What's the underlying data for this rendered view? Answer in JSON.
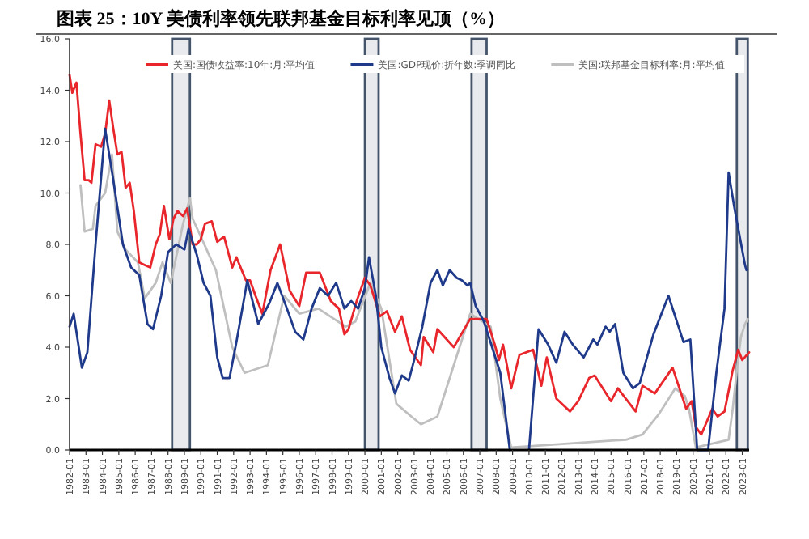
{
  "chart_data": {
    "type": "line",
    "title": "图表 25：10Y 美债利率领先联邦基金目标利率见顶（%）",
    "legend": "top",
    "xlim": [
      "1982-01",
      "2023-06"
    ],
    "xticks": [
      {
        "value": "1982-01",
        "label": "1982-01"
      },
      {
        "value": "1983-01",
        "label": "1983-01"
      },
      {
        "value": "1984-01",
        "label": "1984-01"
      },
      {
        "value": "1985-01",
        "label": "1985-01"
      },
      {
        "value": "1986-01",
        "label": "1986-01"
      },
      {
        "value": "1987-01",
        "label": "1987-01"
      },
      {
        "value": "1988-01",
        "label": "1988-01"
      },
      {
        "value": "1989-01",
        "label": "1989-01"
      },
      {
        "value": "1990-01",
        "label": "1990-01"
      },
      {
        "value": "1991-01",
        "label": "1991-01"
      },
      {
        "value": "1992-01",
        "label": "1992-01"
      },
      {
        "value": "1993-01",
        "label": "1993-01"
      },
      {
        "value": "1994-01",
        "label": "1994-01"
      },
      {
        "value": "1995-01",
        "label": "1995-01"
      },
      {
        "value": "1996-01",
        "label": "1996-01"
      },
      {
        "value": "1997-01",
        "label": "1997-01"
      },
      {
        "value": "1998-01",
        "label": "1998-01"
      },
      {
        "value": "1999-01",
        "label": "1999-01"
      },
      {
        "value": "2000-01",
        "label": "2000-01"
      },
      {
        "value": "2001-01",
        "label": "2001-01"
      },
      {
        "value": "2002-01",
        "label": "2002-01"
      },
      {
        "value": "2003-01",
        "label": "2003-01"
      },
      {
        "value": "2004-01",
        "label": "2004-01"
      },
      {
        "value": "2005-01",
        "label": "2005-01"
      },
      {
        "value": "2006-01",
        "label": "2006-01"
      },
      {
        "value": "2007-01",
        "label": "2007-01"
      },
      {
        "value": "2008-01",
        "label": "2008-01"
      },
      {
        "value": "2009-01",
        "label": "2009-01"
      },
      {
        "value": "2010-01",
        "label": "2010-01"
      },
      {
        "value": "2011-01",
        "label": "2011-01"
      },
      {
        "value": "2012-01",
        "label": "2012-01"
      },
      {
        "value": "2013-01",
        "label": "2013-01"
      },
      {
        "value": "2014-01",
        "label": "2014-01"
      },
      {
        "value": "2015-01",
        "label": "2015-01"
      },
      {
        "value": "2016-01",
        "label": "2016-01"
      },
      {
        "value": "2017-01",
        "label": "2017-01"
      },
      {
        "value": "2018-01",
        "label": "2018-01"
      },
      {
        "value": "2019-01",
        "label": "2019-01"
      },
      {
        "value": "2020-01",
        "label": "2020-01"
      },
      {
        "value": "2021-01",
        "label": "2021-01"
      },
      {
        "value": "2022-01",
        "label": "2022-01"
      },
      {
        "value": "2023-01",
        "label": "2023-01"
      }
    ],
    "ylim": [
      0,
      16
    ],
    "yticks": [
      {
        "value": 0,
        "label": "0.0"
      },
      {
        "value": 2,
        "label": "2.0"
      },
      {
        "value": 4,
        "label": "4.0"
      },
      {
        "value": 6,
        "label": "6.0"
      },
      {
        "value": 8,
        "label": "8.0"
      },
      {
        "value": 10,
        "label": "10.0"
      },
      {
        "value": 12,
        "label": "12.0"
      },
      {
        "value": 14,
        "label": "14.0"
      },
      {
        "value": 16,
        "label": "16.0"
      }
    ],
    "bands": [
      {
        "axis": "x",
        "from": "1988-04",
        "to": "1989-05",
        "color": "#44546a"
      },
      {
        "axis": "x",
        "from": "2000-01",
        "to": "2000-11",
        "color": "#44546a"
      },
      {
        "axis": "x",
        "from": "2006-07",
        "to": "2007-06",
        "color": "#44546a"
      },
      {
        "axis": "x",
        "from": "2022-09",
        "to": "2023-05",
        "color": "#44546a"
      }
    ],
    "series": [
      {
        "name": "美国:国债收益率:10年:月:平均值",
        "color": "#e8262b",
        "x": [
          "1982-01",
          "1982-03",
          "1982-06",
          "1982-09",
          "1982-12",
          "1983-03",
          "1983-05",
          "1983-08",
          "1983-12",
          "1984-03",
          "1984-06",
          "1984-09",
          "1984-12",
          "1985-03",
          "1985-06",
          "1985-09",
          "1985-12",
          "1986-04",
          "1986-08",
          "1986-12",
          "1987-04",
          "1987-07",
          "1987-10",
          "1988-02",
          "1988-05",
          "1988-08",
          "1988-12",
          "1989-03",
          "1989-07",
          "1989-10",
          "1990-01",
          "1990-04",
          "1990-09",
          "1991-01",
          "1991-06",
          "1991-12",
          "1992-03",
          "1992-10",
          "1993-01",
          "1993-05",
          "1993-10",
          "1994-04",
          "1994-11",
          "1995-06",
          "1996-01",
          "1996-06",
          "1997-04",
          "1997-12",
          "1998-06",
          "1998-10",
          "1999-01",
          "1999-07",
          "2000-01",
          "2000-05",
          "2000-12",
          "2001-05",
          "2001-11",
          "2002-04",
          "2002-10",
          "2003-06",
          "2003-08",
          "2004-03",
          "2004-06",
          "2005-06",
          "2006-06",
          "2007-06",
          "2007-12",
          "2008-03",
          "2008-06",
          "2008-12",
          "2009-06",
          "2010-04",
          "2010-10",
          "2011-02",
          "2011-09",
          "2012-07",
          "2013-01",
          "2013-09",
          "2014-01",
          "2015-01",
          "2015-06",
          "2016-07",
          "2016-12",
          "2017-09",
          "2018-10",
          "2019-08",
          "2019-12",
          "2020-03",
          "2020-07",
          "2021-03",
          "2021-07",
          "2021-12",
          "2022-06",
          "2022-10",
          "2023-01",
          "2023-06"
        ],
        "values": [
          14.6,
          13.9,
          14.3,
          12.3,
          10.5,
          10.5,
          10.4,
          11.9,
          11.8,
          12.3,
          13.6,
          12.5,
          11.5,
          11.6,
          10.2,
          10.4,
          9.3,
          7.3,
          7.2,
          7.1,
          8.0,
          8.4,
          9.5,
          8.2,
          9.0,
          9.3,
          9.1,
          9.4,
          8.0,
          8.0,
          8.2,
          8.8,
          8.9,
          8.1,
          8.3,
          7.1,
          7.5,
          6.6,
          6.6,
          6.0,
          5.3,
          7.0,
          8.0,
          6.2,
          5.6,
          6.9,
          6.9,
          5.8,
          5.5,
          4.5,
          4.7,
          5.8,
          6.7,
          6.4,
          5.2,
          5.4,
          4.6,
          5.2,
          3.9,
          3.3,
          4.4,
          3.8,
          4.7,
          4.0,
          5.1,
          5.1,
          4.1,
          3.5,
          4.1,
          2.4,
          3.7,
          3.9,
          2.5,
          3.6,
          2.0,
          1.5,
          1.9,
          2.8,
          2.9,
          1.9,
          2.4,
          1.5,
          2.5,
          2.2,
          3.2,
          1.6,
          1.9,
          0.9,
          0.6,
          1.6,
          1.3,
          1.5,
          3.1,
          3.9,
          3.5,
          3.8
        ]
      },
      {
        "name": "美国:GDP现价:折年数:季调同比",
        "color": "#1f3a8a",
        "x": [
          "1982-01",
          "1982-04",
          "1982-10",
          "1983-02",
          "1983-08",
          "1984-03",
          "1984-09",
          "1985-04",
          "1985-10",
          "1986-04",
          "1986-10",
          "1987-02",
          "1987-08",
          "1988-01",
          "1988-07",
          "1989-01",
          "1989-04",
          "1989-10",
          "1990-03",
          "1990-08",
          "1991-01",
          "1991-05",
          "1991-10",
          "1992-03",
          "1992-11",
          "1993-07",
          "1994-03",
          "1994-09",
          "1995-04",
          "1995-10",
          "1996-04",
          "1996-10",
          "1997-04",
          "1997-10",
          "1998-04",
          "1998-10",
          "1999-03",
          "1999-08",
          "2000-01",
          "2000-04",
          "2000-09",
          "2001-01",
          "2001-07",
          "2001-11",
          "2002-04",
          "2002-09",
          "2003-01",
          "2003-07",
          "2004-01",
          "2004-06",
          "2004-10",
          "2005-03",
          "2005-08",
          "2005-12",
          "2006-04",
          "2006-06",
          "2006-10",
          "2007-04",
          "2007-10",
          "2008-04",
          "2008-11",
          "2009-06",
          "2010-01",
          "2010-08",
          "2011-03",
          "2011-09",
          "2012-03",
          "2012-09",
          "2013-05",
          "2013-12",
          "2014-03",
          "2014-09",
          "2014-12",
          "2015-04",
          "2015-10",
          "2016-05",
          "2016-10",
          "2017-08",
          "2018-07",
          "2019-06",
          "2019-11",
          "2020-04",
          "2020-12",
          "2021-06",
          "2021-12",
          "2022-03",
          "2022-07",
          "2022-08",
          "2023-03",
          "2023-04"
        ],
        "values": [
          4.8,
          5.3,
          3.2,
          3.8,
          8.0,
          12.5,
          10.5,
          8.0,
          7.1,
          6.8,
          4.9,
          4.7,
          6.0,
          7.7,
          8.0,
          7.8,
          8.6,
          7.6,
          6.5,
          6.0,
          3.6,
          2.8,
          2.8,
          4.2,
          6.6,
          4.9,
          5.7,
          6.5,
          5.5,
          4.6,
          4.3,
          5.5,
          6.3,
          6.0,
          6.5,
          5.5,
          5.8,
          5.5,
          6.3,
          7.5,
          6.0,
          4.0,
          2.8,
          2.2,
          2.9,
          2.7,
          3.5,
          4.8,
          6.5,
          7.0,
          6.4,
          7.0,
          6.7,
          6.6,
          6.4,
          6.5,
          5.6,
          5.0,
          4.0,
          3.0,
          0.0,
          null,
          0.0,
          4.7,
          4.1,
          3.4,
          4.6,
          4.1,
          3.6,
          4.3,
          4.1,
          4.8,
          4.6,
          4.9,
          3.0,
          2.4,
          2.6,
          4.5,
          6.0,
          4.2,
          4.3,
          0.0,
          0.0,
          3.0,
          5.5,
          10.8,
          9.5,
          9.2,
          7.2,
          7.0
        ]
      },
      {
        "name": "美国:联邦基金目标利率:月:平均值",
        "color": "#bfbfbf",
        "x": [
          "1982-09",
          "1982-12",
          "1983-06",
          "1983-08",
          "1984-03",
          "1984-08",
          "1984-12",
          "1985-06",
          "1986-03",
          "1986-08",
          "1987-04",
          "1987-09",
          "1988-03",
          "1988-12",
          "1989-05",
          "1989-07",
          "1990-01",
          "1990-12",
          "1991-12",
          "1992-09",
          "1994-02",
          "1995-02",
          "1996-01",
          "1997-03",
          "1998-11",
          "1999-06",
          "2000-05",
          "2001-01",
          "2001-12",
          "2002-11",
          "2003-06",
          "2004-06",
          "2006-06",
          "2007-09",
          "2008-04",
          "2008-12",
          "2015-12",
          "2016-12",
          "2017-12",
          "2018-12",
          "2019-07",
          "2019-10",
          "2020-03",
          "2022-03",
          "2022-06",
          "2022-09",
          "2022-12",
          "2023-03",
          "2023-05"
        ],
        "values": [
          10.3,
          8.5,
          8.6,
          9.5,
          10.0,
          11.5,
          8.5,
          7.8,
          7.3,
          5.9,
          6.5,
          7.3,
          6.5,
          8.8,
          9.8,
          9.0,
          8.3,
          7.0,
          4.0,
          3.0,
          3.3,
          6.0,
          5.3,
          5.5,
          4.8,
          5.0,
          6.5,
          5.5,
          1.8,
          1.3,
          1.0,
          1.3,
          5.3,
          4.8,
          2.0,
          0.1,
          0.4,
          0.6,
          1.4,
          2.4,
          2.1,
          1.6,
          0.1,
          0.4,
          1.6,
          3.1,
          4.4,
          4.9,
          5.1
        ]
      }
    ]
  }
}
